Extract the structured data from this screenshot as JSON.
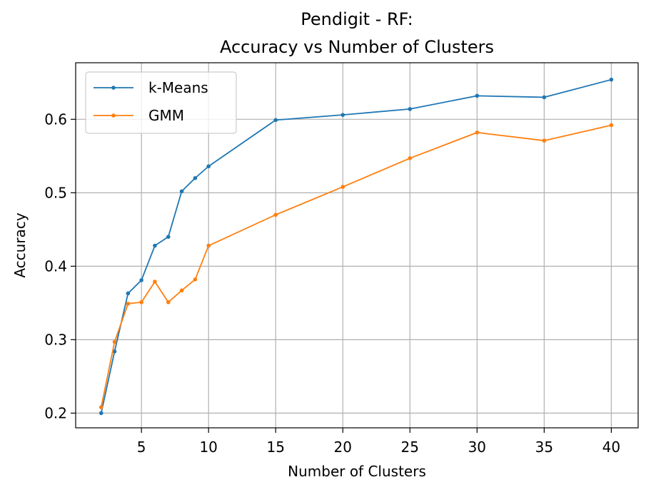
{
  "chart_data": {
    "type": "line",
    "title_line1": "Pendigit - RF:",
    "title_line2": "Accuracy vs Number of Clusters",
    "xlabel": "Number of Clusters",
    "ylabel": "Accuracy",
    "xlim": [
      0.1,
      42.0
    ],
    "ylim": [
      0.18,
      0.677
    ],
    "xticks": [
      5,
      10,
      15,
      20,
      25,
      30,
      35,
      40
    ],
    "yticks": [
      0.2,
      0.3,
      0.4,
      0.5,
      0.6
    ],
    "grid": true,
    "legend_position": "top-left",
    "x": [
      2,
      3,
      4,
      5,
      6,
      7,
      8,
      9,
      10,
      15,
      20,
      25,
      30,
      35,
      40
    ],
    "series": [
      {
        "name": "k-Means",
        "color": "#1f77b4",
        "values": [
          0.2,
          0.284,
          0.363,
          0.381,
          0.428,
          0.44,
          0.502,
          0.52,
          0.536,
          0.599,
          0.606,
          0.614,
          0.632,
          0.63,
          0.654
        ]
      },
      {
        "name": "GMM",
        "color": "#ff7f0e",
        "values": [
          0.208,
          0.297,
          0.349,
          0.351,
          0.379,
          0.351,
          0.367,
          0.382,
          0.428,
          0.47,
          0.508,
          0.547,
          0.582,
          0.571,
          0.592
        ]
      }
    ]
  }
}
